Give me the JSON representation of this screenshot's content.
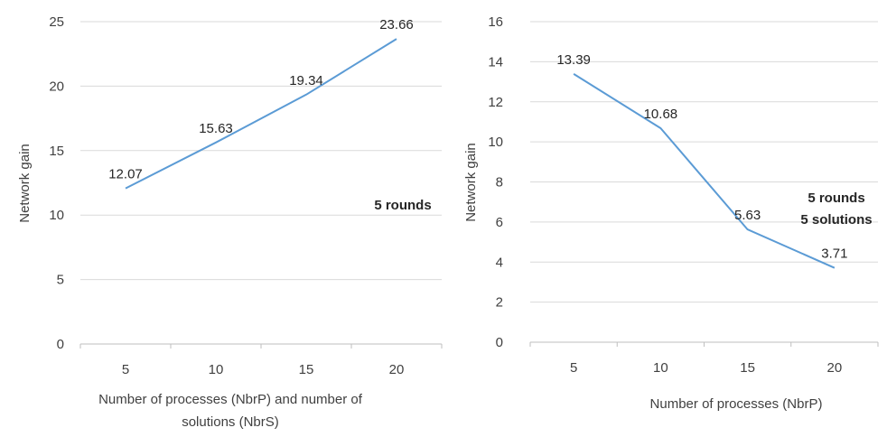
{
  "chart_data": [
    {
      "type": "line",
      "categories": [
        "5",
        "10",
        "15",
        "20"
      ],
      "values": [
        12.07,
        15.63,
        19.34,
        23.66
      ],
      "data_labels": [
        "12.07",
        "15.63",
        "19.34",
        "23.66"
      ],
      "title": "",
      "xlabel_lines": [
        "Number of processes (NbrP) and number of",
        "solutions (NbrS)"
      ],
      "ylabel": "Network gain",
      "ylim": [
        0,
        25
      ],
      "yticks": [
        "0",
        "5",
        "10",
        "15",
        "20",
        "25"
      ],
      "annotation_lines": [
        "5 rounds"
      ],
      "grid": true,
      "color": "#5b9bd5"
    },
    {
      "type": "line",
      "categories": [
        "5",
        "10",
        "15",
        "20"
      ],
      "values": [
        13.39,
        10.68,
        5.63,
        3.71
      ],
      "data_labels": [
        "13.39",
        "10.68",
        "5.63",
        "3.71"
      ],
      "title": "",
      "xlabel_lines": [
        "Number of processes (NbrP)"
      ],
      "ylabel": "Network gain",
      "ylim": [
        0,
        16
      ],
      "yticks": [
        "0",
        "2",
        "4",
        "6",
        "8",
        "10",
        "12",
        "14",
        "16"
      ],
      "annotation_lines": [
        "5 rounds",
        "5 solutions"
      ],
      "grid": true,
      "color": "#5b9bd5"
    }
  ]
}
